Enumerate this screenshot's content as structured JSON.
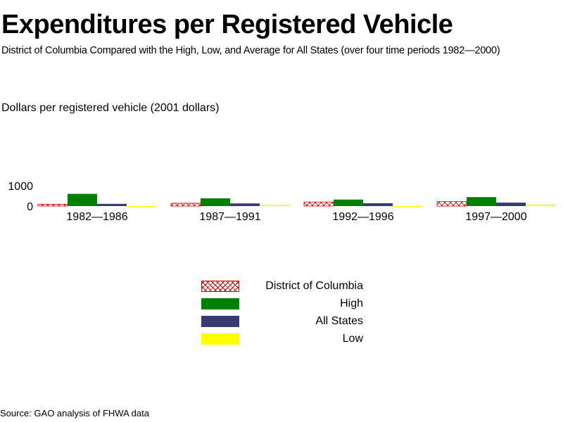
{
  "chart_data": {
    "type": "bar",
    "title": "Expenditures per Registered Vehicle",
    "subtitle": "District of Columbia Compared with the High, Low, and Average for All States (over four time periods 1982—2000)",
    "ylabel": "Dollars per registered vehicle   (2001 dollars)",
    "source": "Source: GAO analysis of FHWA data",
    "categories": [
      "1982—1986",
      "1987—1991",
      "1992—1996",
      "1997—2000"
    ],
    "y_ticks": [
      "0",
      "1000"
    ],
    "ylim": [
      0,
      1000
    ],
    "legend_position": "bottom-center",
    "grid": false,
    "series": [
      {
        "name": "District of Columbia",
        "values": [
          90,
          140,
          200,
          220
        ],
        "color": "#cc0000",
        "pattern": "crosshatch"
      },
      {
        "name": "High",
        "values": [
          600,
          380,
          320,
          440
        ],
        "color": "#008000",
        "pattern": "solid"
      },
      {
        "name": "All States",
        "values": [
          110,
          130,
          140,
          170
        ],
        "color": "#3a3a72",
        "pattern": "solid"
      },
      {
        "name": "Low",
        "values": [
          -35,
          60,
          -30,
          70
        ],
        "color": "#ffff00",
        "pattern": "solid"
      }
    ]
  }
}
